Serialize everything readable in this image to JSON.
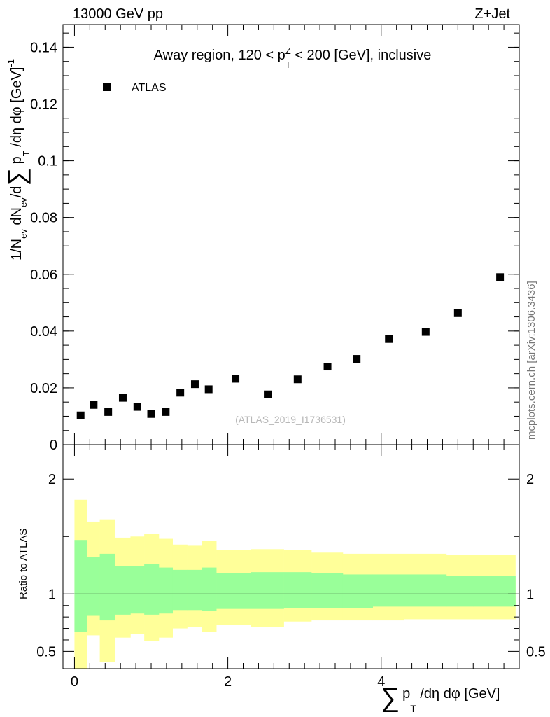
{
  "header": {
    "left": "13000 GeV pp",
    "right": "Z+Jet"
  },
  "side_label": "mcplots.cern.ch [arXiv:1306.3436]",
  "chart_data": [
    {
      "type": "scatter",
      "title": "Away region, 120 < p_T^Z < 200 [GeV], inclusive",
      "title_parts": {
        "pre": "Away region, 120 < p",
        "sub": "T",
        "sup": "Z",
        "post": " < 200 [GeV], inclusive"
      },
      "ylabel": "1/N_ev dN_ev/d∑ p_T /dη dφ [GeV]^-1",
      "ylabel_parts": {
        "a": "1/N",
        "ev1": "ev",
        "b": " dN",
        "ev2": "ev",
        "c": "/d",
        "sum": "∑",
        "d": " p",
        "t": "T",
        "e": " /dη dφ  [GeV]",
        "pow": "-1"
      },
      "watermark": "(ATLAS_2019_I1736531)",
      "legend": [
        {
          "label": "ATLAS",
          "marker": "square"
        }
      ],
      "xlim": [
        -0.15,
        5.8
      ],
      "ylim": [
        0,
        0.148
      ],
      "ytick_values": [
        0,
        0.02,
        0.04,
        0.06,
        0.08,
        0.1,
        0.12,
        0.14
      ],
      "ytick_labels": [
        "0",
        "0.02",
        "0.04",
        "0.06",
        "0.08",
        "0.1",
        "0.12",
        "0.14"
      ],
      "series": [
        {
          "name": "ATLAS",
          "x": [
            0.08,
            0.25,
            0.44,
            0.63,
            0.82,
            1.0,
            1.19,
            1.38,
            1.57,
            1.75,
            2.1,
            2.52,
            2.91,
            3.3,
            3.68,
            4.1,
            4.58,
            5.0,
            5.55
          ],
          "y": [
            0.0103,
            0.014,
            0.0115,
            0.0165,
            0.0133,
            0.0108,
            0.0115,
            0.0183,
            0.0213,
            0.0195,
            0.0232,
            0.0177,
            0.023,
            0.0275,
            0.0302,
            0.0372,
            0.0397,
            0.0463,
            0.059
          ]
        }
      ]
    },
    {
      "type": "area",
      "ylabel": "Ratio to ATLAS",
      "xlabel": "∑ p_T /dη dφ [GeV]",
      "xlabel_parts": {
        "sum": "∑",
        "p": "p",
        "t": "T",
        "rest": " /dη dφ [GeV]"
      },
      "xlim": [
        -0.15,
        5.8
      ],
      "ylim": [
        0.35,
        2.3
      ],
      "reference_line": 1,
      "ytick_values": [
        0.5,
        1,
        2
      ],
      "ytick_labels": [
        "0.5",
        "1",
        "2"
      ],
      "xtick_values": [
        0,
        2,
        4
      ],
      "xtick_labels": [
        "0",
        "2",
        "4"
      ],
      "bins": [
        0,
        0.16,
        0.33,
        0.53,
        0.73,
        0.91,
        1.1,
        1.28,
        1.47,
        1.66,
        1.85,
        2.3,
        2.73,
        3.09,
        3.5,
        3.89,
        4.3,
        4.85,
        5.2,
        5.75
      ],
      "outer_band": {
        "name": "Stat ⊕ Syst (yellow)",
        "color": "#ffff99",
        "lo": [
          0.35,
          0.64,
          0.41,
          0.62,
          0.65,
          0.59,
          0.62,
          0.7,
          0.71,
          0.67,
          0.73,
          0.71,
          0.76,
          0.77,
          0.77,
          0.77,
          0.78,
          0.78,
          0.78
        ],
        "hi": [
          1.82,
          1.63,
          1.65,
          1.49,
          1.5,
          1.52,
          1.48,
          1.43,
          1.42,
          1.46,
          1.38,
          1.39,
          1.38,
          1.36,
          1.35,
          1.35,
          1.35,
          1.34,
          1.34
        ]
      },
      "inner_band": {
        "name": "Stat (green)",
        "color": "#99ff99",
        "lo": [
          0.67,
          0.81,
          0.77,
          0.82,
          0.83,
          0.82,
          0.83,
          0.86,
          0.86,
          0.85,
          0.87,
          0.87,
          0.88,
          0.88,
          0.88,
          0.89,
          0.89,
          0.89,
          0.89
        ],
        "hi": [
          1.47,
          1.32,
          1.35,
          1.24,
          1.24,
          1.26,
          1.23,
          1.21,
          1.21,
          1.23,
          1.18,
          1.19,
          1.19,
          1.18,
          1.17,
          1.17,
          1.17,
          1.16,
          1.16
        ]
      }
    }
  ]
}
